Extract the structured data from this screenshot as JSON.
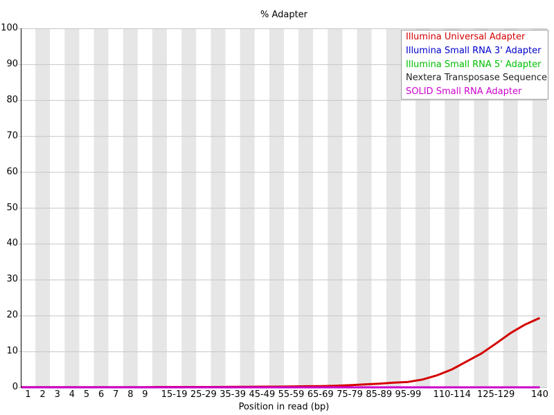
{
  "chart_data": {
    "type": "line",
    "title": "% Adapter",
    "xlabel": "Position in read (bp)",
    "ylabel": "",
    "ylim": [
      0,
      100
    ],
    "yticks": [
      0,
      10,
      20,
      30,
      40,
      50,
      60,
      70,
      80,
      90,
      100
    ],
    "grid": true,
    "legend_position": "top-right",
    "categories": [
      "1",
      "2",
      "3",
      "4",
      "5",
      "6",
      "7",
      "8",
      "9",
      "10-14",
      "15-19",
      "20-24",
      "25-29",
      "30-34",
      "35-39",
      "40-44",
      "45-49",
      "50-54",
      "55-59",
      "60-64",
      "65-69",
      "70-74",
      "75-79",
      "80-84",
      "85-89",
      "90-94",
      "95-99",
      "100-104",
      "105-109",
      "110-114",
      "115-119",
      "120-124",
      "125-129",
      "130-134",
      "135-139",
      "140"
    ],
    "xtick_labels": [
      "1",
      "2",
      "3",
      "4",
      "5",
      "6",
      "7",
      "8",
      "9",
      "15-19",
      "25-29",
      "35-39",
      "45-49",
      "55-59",
      "65-69",
      "75-79",
      "85-89",
      "95-99",
      "110-114",
      "125-129",
      "140"
    ],
    "series": [
      {
        "name": "Illumina Universal Adapter",
        "color": "#d40000",
        "values": [
          0.05,
          0.05,
          0.05,
          0.05,
          0.05,
          0.05,
          0.05,
          0.05,
          0.05,
          0.1,
          0.1,
          0.1,
          0.1,
          0.1,
          0.15,
          0.15,
          0.2,
          0.2,
          0.25,
          0.3,
          0.35,
          0.45,
          0.6,
          0.8,
          1.0,
          1.3,
          1.5,
          2.2,
          3.4,
          5.0,
          7.2,
          9.4,
          12.2,
          15.1,
          17.5,
          19.3
        ]
      },
      {
        "name": "Illumina Small RNA 3' Adapter",
        "color": "#0000cc",
        "values": [
          0,
          0,
          0,
          0,
          0,
          0,
          0,
          0,
          0,
          0,
          0,
          0,
          0,
          0,
          0,
          0,
          0,
          0,
          0,
          0,
          0,
          0,
          0,
          0,
          0,
          0,
          0,
          0,
          0,
          0,
          0,
          0,
          0,
          0,
          0,
          0
        ]
      },
      {
        "name": "Illumina Small RNA 5' Adapter",
        "color": "#00c000",
        "values": [
          0,
          0,
          0,
          0,
          0,
          0,
          0,
          0,
          0,
          0,
          0,
          0,
          0,
          0,
          0,
          0,
          0,
          0,
          0,
          0,
          0,
          0,
          0,
          0,
          0,
          0,
          0,
          0,
          0,
          0,
          0,
          0,
          0,
          0,
          0,
          0
        ]
      },
      {
        "name": "Nextera Transposase Sequence",
        "color": "#222222",
        "values": [
          0,
          0,
          0,
          0,
          0,
          0,
          0,
          0,
          0,
          0,
          0,
          0,
          0,
          0,
          0,
          0,
          0,
          0,
          0,
          0,
          0,
          0,
          0,
          0,
          0,
          0,
          0,
          0,
          0,
          0,
          0,
          0,
          0,
          0,
          0,
          0
        ]
      },
      {
        "name": "SOLID Small RNA Adapter",
        "color": "#cc00cc",
        "values": [
          0,
          0,
          0,
          0,
          0,
          0,
          0,
          0,
          0,
          0,
          0,
          0,
          0,
          0,
          0,
          0,
          0,
          0,
          0,
          0,
          0,
          0,
          0,
          0,
          0,
          0,
          0,
          0,
          0,
          0,
          0,
          0,
          0,
          0,
          0,
          0
        ]
      }
    ],
    "colors": {
      "band_main": "#ffffff",
      "band_alt": "#e6e6e6",
      "gridline": "#c6c6c6",
      "axis": "#000000",
      "bottom_edge": "#c6c6c6",
      "legend_border": "#999999",
      "text": "#000000"
    }
  }
}
